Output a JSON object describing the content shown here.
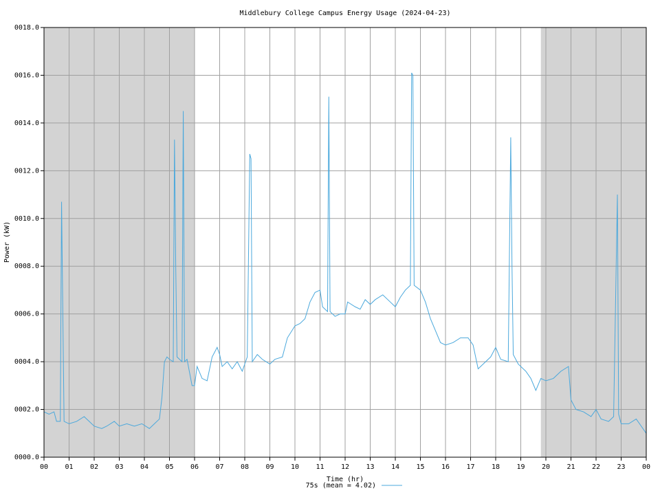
{
  "chart_data": {
    "type": "line",
    "title": "Middlebury College Campus Energy Usage (2024-04-23)",
    "x_label": "Time (hr)",
    "y_label": "Power (kW)",
    "xlim": [
      0,
      24
    ],
    "ylim": [
      0,
      18
    ],
    "xticks": [
      {
        "value": 0,
        "label": "00"
      },
      {
        "value": 1,
        "label": "01"
      },
      {
        "value": 2,
        "label": "02"
      },
      {
        "value": 3,
        "label": "03"
      },
      {
        "value": 4,
        "label": "04"
      },
      {
        "value": 5,
        "label": "05"
      },
      {
        "value": 6,
        "label": "06"
      },
      {
        "value": 7,
        "label": "07"
      },
      {
        "value": 8,
        "label": "08"
      },
      {
        "value": 9,
        "label": "09"
      },
      10,
      11,
      12,
      13,
      14,
      15,
      16,
      17,
      18,
      19,
      20,
      21,
      22,
      23,
      {
        "value": 24,
        "label": "00"
      }
    ],
    "yticks": [
      {
        "value": 0,
        "label": "0000.0"
      },
      {
        "value": 2,
        "label": "0002.0"
      },
      {
        "value": 4,
        "label": "0004.0"
      },
      {
        "value": 6,
        "label": "0006.0"
      },
      {
        "value": 8,
        "label": "0008.0"
      },
      {
        "value": 10,
        "label": "0010.0"
      },
      {
        "value": 12,
        "label": "0012.0"
      },
      {
        "value": 14,
        "label": "0014.0"
      },
      {
        "value": 16,
        "label": "0016.0"
      },
      {
        "value": 18,
        "label": "0018.0"
      }
    ],
    "grid": true,
    "shaded_regions": [
      [
        0,
        6
      ],
      [
        19.8,
        24
      ]
    ],
    "shade_color": "#d3d3d3",
    "legend": "bottom",
    "x": [
      0.0,
      0.2,
      0.4,
      0.5,
      0.65,
      0.7,
      0.75,
      0.8,
      1.0,
      1.3,
      1.6,
      1.8,
      2.0,
      2.3,
      2.5,
      2.8,
      3.0,
      3.3,
      3.6,
      3.9,
      4.2,
      4.4,
      4.6,
      4.7,
      4.8,
      4.9,
      5.0,
      5.15,
      5.2,
      5.25,
      5.3,
      5.5,
      5.55,
      5.6,
      5.7,
      5.9,
      6.0,
      6.1,
      6.3,
      6.5,
      6.7,
      6.9,
      7.0,
      7.1,
      7.3,
      7.5,
      7.7,
      7.9,
      8.1,
      8.2,
      8.25,
      8.3,
      8.5,
      8.7,
      9.0,
      9.2,
      9.5,
      9.7,
      10.0,
      10.2,
      10.4,
      10.6,
      10.8,
      11.0,
      11.1,
      11.3,
      11.35,
      11.4,
      11.6,
      11.8,
      12.0,
      12.1,
      12.4,
      12.6,
      12.8,
      13.0,
      13.2,
      13.5,
      13.8,
      14.0,
      14.2,
      14.4,
      14.6,
      14.65,
      14.7,
      14.75,
      15.0,
      15.2,
      15.4,
      15.6,
      15.8,
      16.0,
      16.3,
      16.6,
      16.9,
      17.1,
      17.3,
      17.6,
      17.8,
      18.0,
      18.2,
      18.5,
      18.6,
      18.65,
      18.7,
      18.9,
      19.2,
      19.4,
      19.6,
      19.8,
      20.0,
      20.3,
      20.6,
      20.9,
      21.0,
      21.2,
      21.5,
      21.8,
      22.0,
      22.2,
      22.5,
      22.7,
      22.85,
      22.9,
      23.0,
      23.3,
      23.6,
      23.8,
      24.0
    ],
    "series": [
      {
        "name": "75s (mean = 4.02)",
        "color": "#4aa8dc",
        "values": [
          1.9,
          1.8,
          1.9,
          1.5,
          1.5,
          10.7,
          6.0,
          1.5,
          1.4,
          1.5,
          1.7,
          1.5,
          1.3,
          1.2,
          1.3,
          1.5,
          1.3,
          1.4,
          1.3,
          1.4,
          1.2,
          1.4,
          1.6,
          2.5,
          4.0,
          4.2,
          4.1,
          4.0,
          13.3,
          8.0,
          4.2,
          4.0,
          14.5,
          4.0,
          4.1,
          3.0,
          3.0,
          3.8,
          3.3,
          3.2,
          4.2,
          4.6,
          4.3,
          3.8,
          4.0,
          3.7,
          4.0,
          3.6,
          4.2,
          12.7,
          12.5,
          4.0,
          4.3,
          4.1,
          3.9,
          4.1,
          4.2,
          5.0,
          5.5,
          5.6,
          5.8,
          6.5,
          6.9,
          7.0,
          6.3,
          6.1,
          15.1,
          6.1,
          5.9,
          6.0,
          6.0,
          6.5,
          6.3,
          6.2,
          6.6,
          6.4,
          6.6,
          6.8,
          6.5,
          6.3,
          6.7,
          7.0,
          7.2,
          16.1,
          16.0,
          7.2,
          7.0,
          6.5,
          5.8,
          5.3,
          4.8,
          4.7,
          4.8,
          5.0,
          5.0,
          4.7,
          3.7,
          4.0,
          4.2,
          4.6,
          4.1,
          4.0,
          13.4,
          8.0,
          4.3,
          3.9,
          3.6,
          3.3,
          2.8,
          3.3,
          3.2,
          3.3,
          3.6,
          3.8,
          2.4,
          2.0,
          1.9,
          1.7,
          2.0,
          1.6,
          1.5,
          1.7,
          11.0,
          1.8,
          1.4,
          1.4,
          1.6,
          1.3,
          1.0
        ]
      }
    ]
  }
}
